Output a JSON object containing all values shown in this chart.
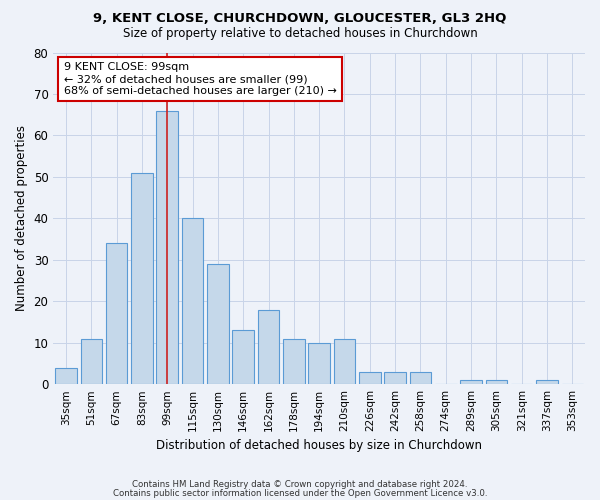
{
  "title1": "9, KENT CLOSE, CHURCHDOWN, GLOUCESTER, GL3 2HQ",
  "title2": "Size of property relative to detached houses in Churchdown",
  "xlabel": "Distribution of detached houses by size in Churchdown",
  "ylabel": "Number of detached properties",
  "categories": [
    "35sqm",
    "51sqm",
    "67sqm",
    "83sqm",
    "99sqm",
    "115sqm",
    "130sqm",
    "146sqm",
    "162sqm",
    "178sqm",
    "194sqm",
    "210sqm",
    "226sqm",
    "242sqm",
    "258sqm",
    "274sqm",
    "289sqm",
    "305sqm",
    "321sqm",
    "337sqm",
    "353sqm"
  ],
  "values": [
    4,
    11,
    34,
    51,
    66,
    40,
    29,
    13,
    18,
    11,
    10,
    11,
    3,
    3,
    3,
    0,
    1,
    1,
    0,
    1,
    0
  ],
  "bar_color": "#c5d8ea",
  "bar_edge_color": "#5b9bd5",
  "highlight_index": 4,
  "highlight_line_color": "#cc2222",
  "ylim": [
    0,
    80
  ],
  "yticks": [
    0,
    10,
    20,
    30,
    40,
    50,
    60,
    70,
    80
  ],
  "annotation_line1": "9 KENT CLOSE: 99sqm",
  "annotation_line2": "← 32% of detached houses are smaller (99)",
  "annotation_line3": "68% of semi-detached houses are larger (210) →",
  "annotation_box_color": "#ffffff",
  "annotation_box_edge": "#cc0000",
  "footer1": "Contains HM Land Registry data © Crown copyright and database right 2024.",
  "footer2": "Contains public sector information licensed under the Open Government Licence v3.0.",
  "bg_color": "#eef2f9",
  "grid_color": "#c8d4e8"
}
